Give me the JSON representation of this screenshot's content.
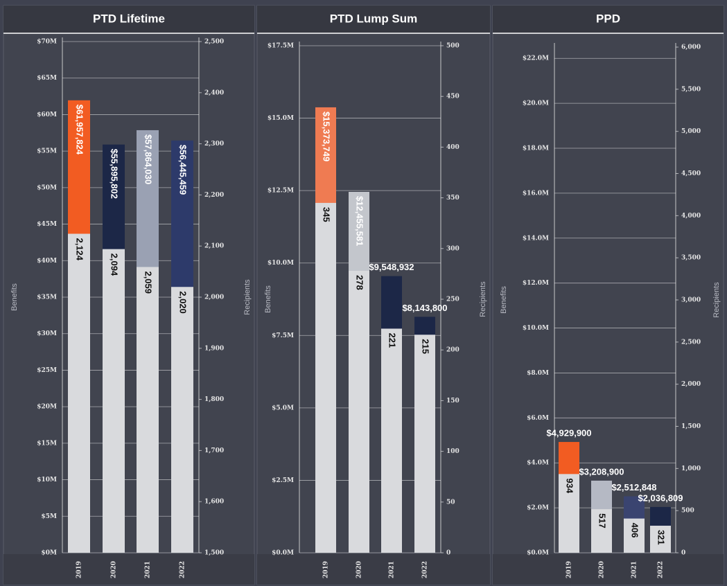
{
  "chart_data": [
    {
      "type": "bar",
      "title": "PTD Lifetime",
      "y_label": "Benefits",
      "y2_label": "Recipients",
      "categories": [
        "2019",
        "2020",
        "2021",
        "2022"
      ],
      "series": [
        {
          "colors": [
            "#f25c22",
            "#1c2747",
            "#9aa1b3",
            "#2d3a6a"
          ],
          "values": [
            61957824,
            55895802,
            57864030,
            56445459
          ],
          "value_labels": [
            "$61,957,824",
            "$55,895,802",
            "$57,864,030",
            "$56,445,459"
          ]
        },
        {
          "axis": "y2",
          "color": "#d9dadd",
          "values": [
            2124,
            2094,
            2059,
            2020
          ],
          "value_labels": [
            "2,124",
            "2,094",
            "2,059",
            "2,020"
          ]
        }
      ],
      "ylim": [
        0,
        70000000
      ],
      "yticks": [
        {
          "value": 0,
          "label": "$0M"
        },
        {
          "value": 5000000,
          "label": "$5M"
        },
        {
          "value": 10000000,
          "label": "$10M"
        },
        {
          "value": 15000000,
          "label": "$15M"
        },
        {
          "value": 20000000,
          "label": "$20M"
        },
        {
          "value": 25000000,
          "label": "$25M"
        },
        {
          "value": 30000000,
          "label": "$30M"
        },
        {
          "value": 35000000,
          "label": "$35M"
        },
        {
          "value": 40000000,
          "label": "$40M"
        },
        {
          "value": 45000000,
          "label": "$45M"
        },
        {
          "value": 50000000,
          "label": "$50M"
        },
        {
          "value": 55000000,
          "label": "$55M"
        },
        {
          "value": 60000000,
          "label": "$60M"
        },
        {
          "value": 65000000,
          "label": "$65M"
        },
        {
          "value": 70000000,
          "label": "$70M"
        }
      ],
      "y2lim": [
        1500,
        2500
      ],
      "y2ticks": [
        {
          "value": 1500,
          "label": "1,500"
        },
        {
          "value": 1600,
          "label": "1,600"
        },
        {
          "value": 1700,
          "label": "1,700"
        },
        {
          "value": 1800,
          "label": "1,800"
        },
        {
          "value": 1900,
          "label": "1,900"
        },
        {
          "value": 2000,
          "label": "2,000"
        },
        {
          "value": 2100,
          "label": "2,100"
        },
        {
          "value": 2200,
          "label": "2,200"
        },
        {
          "value": 2300,
          "label": "2,300"
        },
        {
          "value": 2400,
          "label": "2,400"
        },
        {
          "value": 2500,
          "label": "2,500"
        }
      ],
      "grid": true
    },
    {
      "type": "bar",
      "title": "PTD Lump Sum",
      "y_label": "Benefits",
      "y2_label": "Recipients",
      "categories": [
        "2019",
        "2020",
        "2021",
        "2022"
      ],
      "series": [
        {
          "colors": [
            "#ef7b52",
            "#c3c6cc",
            "#1c2747",
            "#1c2747"
          ],
          "values": [
            15373749,
            12455581,
            9548932,
            8143800
          ],
          "value_labels": [
            "$15,373,749",
            "$12,455,581",
            "$9,548,932",
            "$8,143,800"
          ]
        },
        {
          "axis": "y2",
          "color": "#d9dadd",
          "values": [
            345,
            278,
            221,
            215
          ]
        }
      ],
      "ylim": [
        0,
        17500000
      ],
      "yticks": [
        {
          "value": 0,
          "label": "$0.0M"
        },
        {
          "value": 2500000,
          "label": "$2.5M"
        },
        {
          "value": 5000000,
          "label": "$5.0M"
        },
        {
          "value": 7500000,
          "label": "$7.5M"
        },
        {
          "value": 10000000,
          "label": "$10.0M"
        },
        {
          "value": 12500000,
          "label": "$12.5M"
        },
        {
          "value": 15000000,
          "label": "$15.0M"
        },
        {
          "value": 17500000,
          "label": "$17.5M"
        }
      ],
      "y2lim": [
        0,
        500
      ],
      "y2ticks": [
        0,
        50,
        100,
        150,
        200,
        250,
        300,
        350,
        400,
        450,
        500
      ],
      "grid": true
    },
    {
      "type": "bar",
      "title": "PPD",
      "y_label": "Benefits",
      "y2_label": "Recipients",
      "categories": [
        "2019",
        "2020",
        "2021",
        "2022"
      ],
      "series": [
        {
          "colors": [
            "#f25c22",
            "#b5b9c4",
            "#3a4470",
            "#1c2747"
          ],
          "values": [
            4929900,
            3208900,
            2512848,
            2036809
          ],
          "value_labels": [
            "$4,929,900",
            "$3,208,900",
            "$2,512,848",
            "$2,036,809"
          ]
        },
        {
          "axis": "y2",
          "color": "#d9dadd",
          "values": [
            934,
            517,
            406,
            321
          ]
        }
      ],
      "ylim": [
        0,
        22500000
      ],
      "yticks": [
        {
          "value": 0,
          "label": "$0.0M"
        },
        {
          "value": 2000000,
          "label": "$2.0M"
        },
        {
          "value": 4000000,
          "label": "$4.0M"
        },
        {
          "value": 6000000,
          "label": "$6.0M"
        },
        {
          "value": 8000000,
          "label": "$8.0M"
        },
        {
          "value": 10000000,
          "label": "$10.0M"
        },
        {
          "value": 12000000,
          "label": "$12.0M"
        },
        {
          "value": 14000000,
          "label": "$14.0M"
        },
        {
          "value": 16000000,
          "label": "$16.0M"
        },
        {
          "value": 18000000,
          "label": "$18.0M"
        },
        {
          "value": 20000000,
          "label": "$20.0M"
        },
        {
          "value": 22000000,
          "label": "$22.0M"
        }
      ],
      "y2lim": [
        0,
        6000
      ],
      "y2ticks": [
        0,
        500,
        {
          "value": 1000,
          "label": "1,000"
        },
        {
          "value": 1500,
          "label": "1,500"
        },
        {
          "value": 2000,
          "label": "2,000"
        },
        {
          "value": 2500,
          "label": "2,500"
        },
        {
          "value": 3000,
          "label": "3,000"
        },
        {
          "value": 3500,
          "label": "3,500"
        },
        {
          "value": 4000,
          "label": "4,000"
        },
        {
          "value": 4500,
          "label": "4,500"
        },
        {
          "value": 5000,
          "label": "5,000"
        },
        {
          "value": 5500,
          "label": "5,500"
        },
        {
          "value": 6000,
          "label": "6,000"
        }
      ],
      "grid": true
    }
  ]
}
